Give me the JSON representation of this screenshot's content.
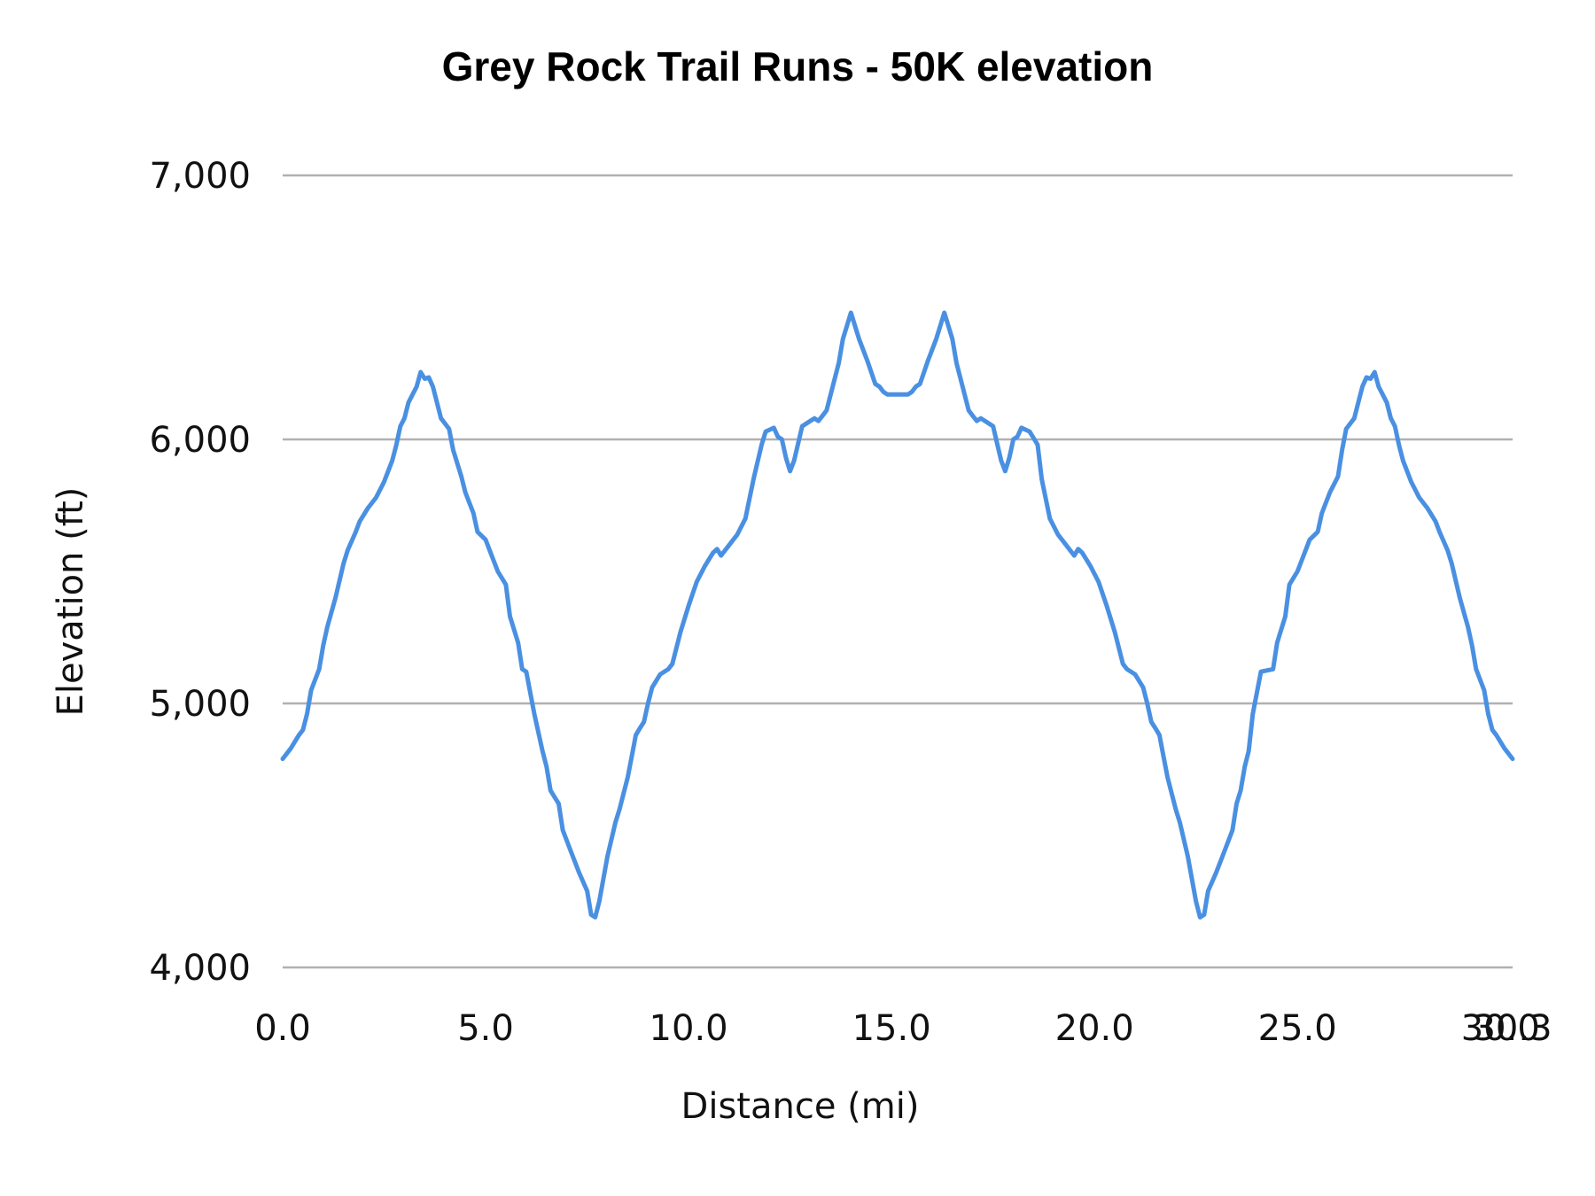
{
  "chart_data": {
    "type": "line",
    "title": "Grey Rock Trail Runs - 50K elevation",
    "xlabel": "Distance (mi)",
    "ylabel": "Elevation (ft)",
    "xlim": [
      0,
      30.3
    ],
    "ylim": [
      4000,
      7000
    ],
    "x_ticks": [
      "0.0",
      "5.0",
      "10.0",
      "15.0",
      "20.0",
      "25.0",
      "30.0",
      "30.3"
    ],
    "x_tick_values": [
      0,
      5,
      10,
      15,
      20,
      25,
      30,
      30.3
    ],
    "y_ticks": [
      "4,000",
      "5,000",
      "6,000",
      "7,000"
    ],
    "y_tick_values": [
      4000,
      5000,
      6000,
      7000
    ],
    "grid": "horizontal",
    "legend": null,
    "line_color": "#4a90e2",
    "grid_color": "#b0b0b0",
    "series": [
      {
        "name": "Elevation",
        "x": [
          0.0,
          0.2,
          0.4,
          0.5,
          0.6,
          0.7,
          0.9,
          1.0,
          1.1,
          1.3,
          1.5,
          1.6,
          1.8,
          1.9,
          2.1,
          2.3,
          2.5,
          2.7,
          2.8,
          2.9,
          3.0,
          3.1,
          3.3,
          3.4,
          3.5,
          3.6,
          3.7,
          3.8,
          3.9,
          4.1,
          4.2,
          4.4,
          4.5,
          4.7,
          4.8,
          5.0,
          5.2,
          5.3,
          5.5,
          5.6,
          5.7,
          5.8,
          5.9,
          6.0,
          6.2,
          6.4,
          6.5,
          6.6,
          6.8,
          6.9,
          7.1,
          7.3,
          7.5,
          7.6,
          7.7,
          7.8,
          8.0,
          8.2,
          8.3,
          8.5,
          8.6,
          8.7,
          8.8,
          8.9,
          9.0,
          9.1,
          9.3,
          9.5,
          9.6,
          9.8,
          10.0,
          10.2,
          10.4,
          10.6,
          10.7,
          10.8,
          11.0,
          11.2,
          11.4,
          11.6,
          11.8,
          11.9,
          12.1,
          12.2,
          12.3,
          12.4,
          12.5,
          12.6,
          12.8,
          12.9,
          13.0,
          13.1,
          13.2,
          13.3,
          13.4,
          13.6,
          13.7,
          13.8,
          14.0,
          14.2,
          14.4,
          14.6,
          14.7,
          14.8,
          14.9,
          15.15,
          15.4,
          15.5,
          15.6,
          15.7,
          15.9,
          16.1,
          16.3,
          16.5,
          16.6,
          16.7,
          16.9,
          17.0,
          17.1,
          17.2,
          17.3,
          17.4,
          17.5,
          17.7,
          17.8,
          17.9,
          18.0,
          18.1,
          18.2,
          18.4,
          18.6,
          18.7,
          18.9,
          19.1,
          19.3,
          19.5,
          19.6,
          19.7,
          19.9,
          20.1,
          20.3,
          20.5,
          20.7,
          20.8,
          21.0,
          21.2,
          21.3,
          21.4,
          21.5,
          21.6,
          21.7,
          21.8,
          22.0,
          22.1,
          22.3,
          22.5,
          22.6,
          22.7,
          22.8,
          23.0,
          23.2,
          23.4,
          23.5,
          23.6,
          23.7,
          23.8,
          23.9,
          24.1,
          24.4,
          24.5,
          24.6,
          24.7,
          24.8,
          25.0,
          25.1,
          25.3,
          25.5,
          25.6,
          25.8,
          26.0,
          26.1,
          26.2,
          26.4,
          26.5,
          26.6,
          26.7,
          26.8,
          26.9,
          27.0,
          27.2,
          27.3,
          27.4,
          27.5,
          27.6,
          27.8,
          28.0,
          28.2,
          28.4,
          28.5,
          28.7,
          28.8,
          29.0,
          29.2,
          29.3,
          29.4,
          29.6,
          29.7,
          29.8,
          29.9,
          30.1,
          30.3
        ],
        "y": [
          4790,
          4830,
          4880,
          4900,
          4960,
          5050,
          5130,
          5220,
          5290,
          5400,
          5530,
          5580,
          5650,
          5690,
          5740,
          5780,
          5840,
          5920,
          5980,
          6050,
          6080,
          6140,
          6200,
          6255,
          6230,
          6235,
          6200,
          6140,
          6080,
          6040,
          5960,
          5860,
          5800,
          5720,
          5650,
          5620,
          5540,
          5500,
          5450,
          5330,
          5280,
          5230,
          5130,
          5120,
          4960,
          4820,
          4760,
          4670,
          4620,
          4520,
          4440,
          4360,
          4290,
          4200,
          4190,
          4250,
          4420,
          4550,
          4600,
          4720,
          4800,
          4880,
          4906,
          4930,
          5000,
          5060,
          5110,
          5130,
          5150,
          5270,
          5370,
          5460,
          5520,
          5570,
          5585,
          5560,
          5600,
          5640,
          5700,
          5850,
          5980,
          6030,
          6044,
          6010,
          6000,
          5930,
          5880,
          5920,
          6050,
          6060,
          6070,
          6080,
          6070,
          6090,
          6110,
          6230,
          6290,
          6380,
          6480,
          6380,
          6300,
          6210,
          6200,
          6180,
          6170,
          6170,
          6170,
          6180,
          6200,
          6210,
          6300,
          6380,
          6480,
          6380,
          6290,
          6230,
          6110,
          6090,
          6070,
          6080,
          6070,
          6060,
          6050,
          5920,
          5880,
          5930,
          6000,
          6010,
          6044,
          6030,
          5980,
          5850,
          5700,
          5640,
          5600,
          5560,
          5585,
          5570,
          5520,
          5460,
          5370,
          5270,
          5150,
          5130,
          5110,
          5060,
          5000,
          4930,
          4906,
          4880,
          4800,
          4720,
          4600,
          4550,
          4420,
          4250,
          4190,
          4200,
          4290,
          4360,
          4440,
          4520,
          4620,
          4670,
          4760,
          4820,
          4960,
          5120,
          5130,
          5230,
          5280,
          5330,
          5450,
          5500,
          5540,
          5620,
          5650,
          5720,
          5800,
          5860,
          5960,
          6040,
          6080,
          6140,
          6200,
          6235,
          6230,
          6255,
          6200,
          6140,
          6080,
          6050,
          5980,
          5920,
          5840,
          5780,
          5740,
          5690,
          5650,
          5580,
          5530,
          5400,
          5290,
          5220,
          5130,
          5050,
          4960,
          4900,
          4880,
          4830,
          4790
        ]
      }
    ]
  }
}
